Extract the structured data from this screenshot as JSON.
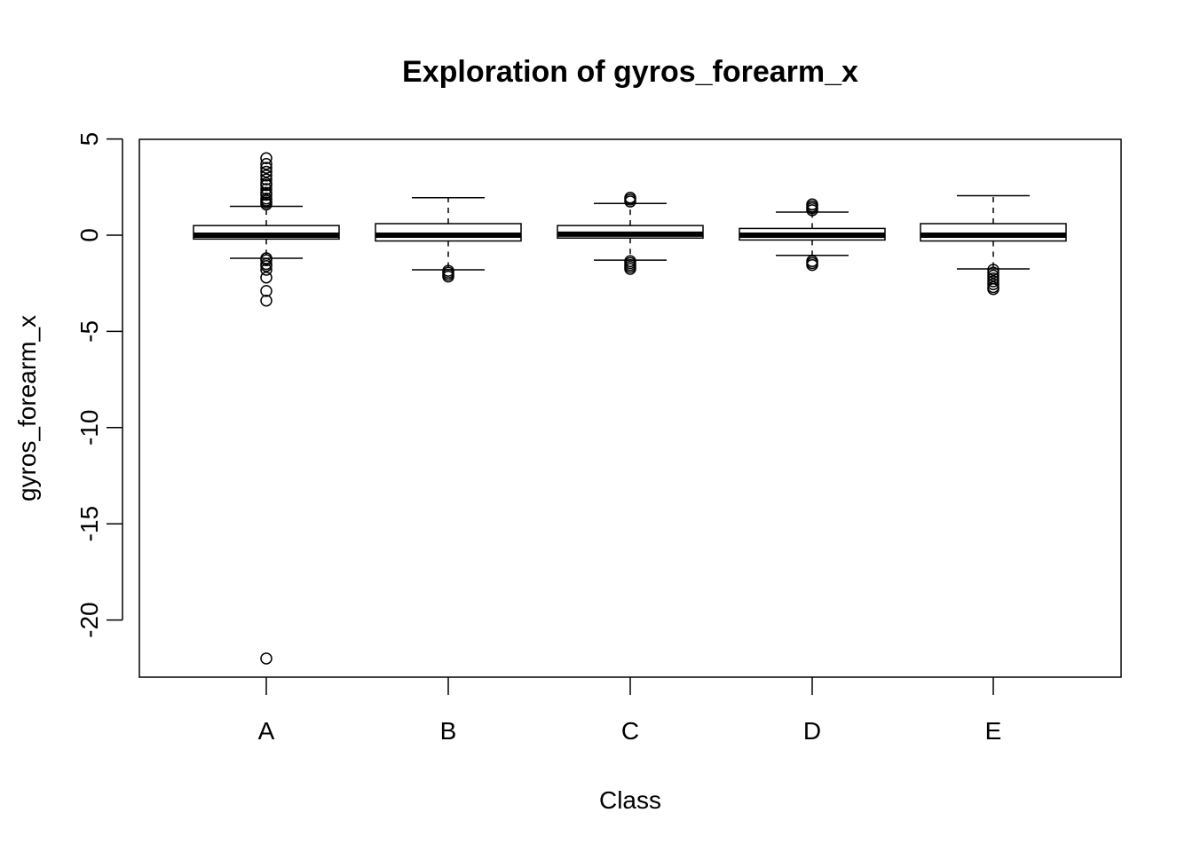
{
  "chart_data": {
    "type": "box",
    "title": "Exploration of  gyros_forearm_x",
    "xlabel": "Class",
    "ylabel": "gyros_forearm_x",
    "categories": [
      "A",
      "B",
      "C",
      "D",
      "E"
    ],
    "y_ticks": [
      5,
      0,
      -5,
      -10,
      -15,
      -20
    ],
    "y_tick_labels": [
      "5",
      "0",
      "-5",
      "-10",
      "-15",
      "-20"
    ],
    "ylim": [
      -23,
      5
    ],
    "boxes": [
      {
        "category": "A",
        "whisker_low": -1.2,
        "q1": -0.2,
        "median": 0.0,
        "q3": 0.5,
        "whisker_high": 1.5,
        "outliers": [
          4.0,
          3.7,
          3.5,
          3.3,
          3.1,
          2.9,
          2.7,
          2.6,
          2.4,
          2.2,
          2.1,
          1.9,
          1.8,
          1.7,
          1.6,
          -1.2,
          -1.3,
          -1.5,
          -1.6,
          -1.8,
          -2.2,
          -2.9,
          -3.4,
          -22.0
        ]
      },
      {
        "category": "B",
        "whisker_low": -1.8,
        "q1": -0.3,
        "median": 0.0,
        "q3": 0.6,
        "whisker_high": 1.95,
        "outliers": [
          -1.85,
          -1.95,
          -2.05,
          -2.15
        ]
      },
      {
        "category": "C",
        "whisker_low": -1.3,
        "q1": -0.15,
        "median": 0.05,
        "q3": 0.5,
        "whisker_high": 1.65,
        "outliers": [
          1.75,
          1.85,
          1.95,
          -1.35,
          -1.45,
          -1.55,
          -1.65,
          -1.75
        ]
      },
      {
        "category": "D",
        "whisker_low": -1.05,
        "q1": -0.25,
        "median": 0.0,
        "q3": 0.35,
        "whisker_high": 1.2,
        "outliers": [
          1.3,
          1.4,
          1.5,
          1.6,
          -1.35,
          -1.45,
          -1.55
        ]
      },
      {
        "category": "E",
        "whisker_low": -1.75,
        "q1": -0.3,
        "median": 0.0,
        "q3": 0.6,
        "whisker_high": 2.05,
        "outliers": [
          -1.8,
          -1.95,
          -2.1,
          -2.25,
          -2.4,
          -2.55,
          -2.7,
          -2.8
        ]
      }
    ]
  }
}
